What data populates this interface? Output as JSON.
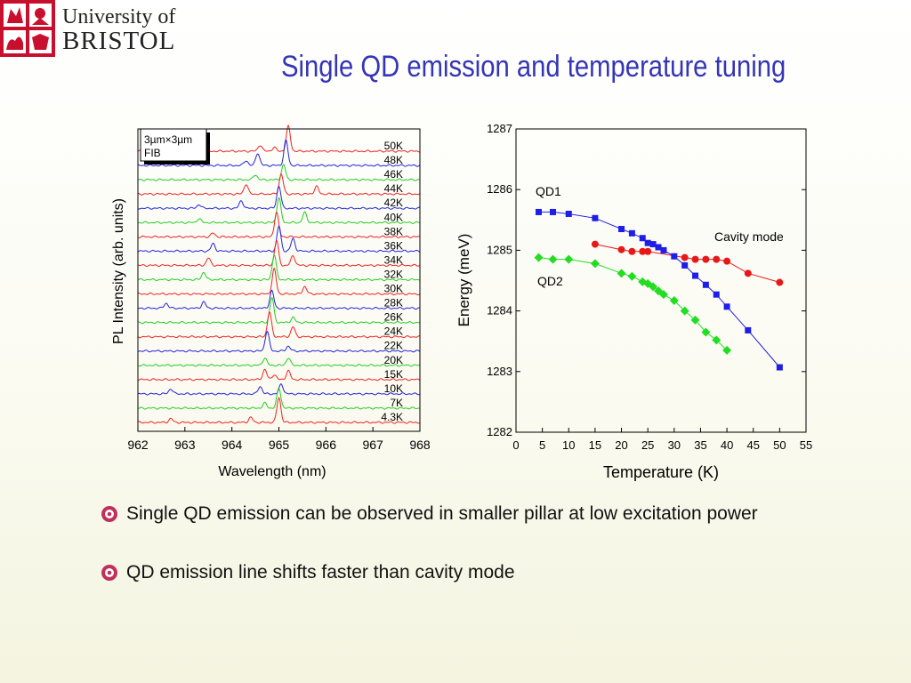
{
  "logo": {
    "line1": "University of",
    "line2": "BRISTOL"
  },
  "title": "Single QD emission and temperature tuning",
  "bullets": [
    {
      "text": "Single QD emission can be observed in smaller pillar at low excitation power"
    },
    {
      "text": "QD emission line shifts faster than cavity mode"
    }
  ],
  "colors": {
    "title": "#3535b8",
    "qd1": "#1e1ee6",
    "qd2": "#22dd22",
    "cavity": "#e81818",
    "trace_red": "#ee2222",
    "trace_green": "#22cc22",
    "trace_blue": "#2222dd",
    "bullet_icon": "#c0305a",
    "logo": "#c8102e"
  },
  "icons": {
    "bullet": "flower-bullet-icon",
    "crest": "bristol-crest-icon"
  },
  "chart_data": [
    {
      "type": "line",
      "xlabel": "Wavelength (nm)",
      "ylabel": "PL Intensity (arb. units)",
      "xticks": [
        "962",
        "963",
        "964",
        "965",
        "966",
        "967",
        "968"
      ],
      "xlim": [
        962,
        968
      ],
      "inset_label": [
        "3µm×3µm",
        "FIB"
      ],
      "series": [
        {
          "name": "50K",
          "color": "red",
          "peaks": [
            [
              965.2,
              1.0
            ],
            [
              964.6,
              0.25
            ],
            [
              964.9,
              0.15
            ]
          ]
        },
        {
          "name": "48K",
          "color": "blue",
          "peaks": [
            [
              965.15,
              1.0
            ],
            [
              964.55,
              0.5
            ],
            [
              964.3,
              0.2
            ]
          ]
        },
        {
          "name": "46K",
          "color": "green",
          "peaks": [
            [
              965.1,
              0.6
            ],
            [
              964.5,
              0.2
            ]
          ]
        },
        {
          "name": "44K",
          "color": "red",
          "peaks": [
            [
              965.05,
              0.8
            ],
            [
              964.3,
              0.4
            ],
            [
              965.8,
              0.3
            ]
          ]
        },
        {
          "name": "42K",
          "color": "blue",
          "peaks": [
            [
              965.0,
              0.9
            ],
            [
              964.2,
              0.3
            ],
            [
              963.3,
              0.15
            ]
          ]
        },
        {
          "name": "40K",
          "color": "green",
          "peaks": [
            [
              965.0,
              1.0
            ],
            [
              965.55,
              0.4
            ],
            [
              963.3,
              0.15
            ]
          ]
        },
        {
          "name": "38K",
          "color": "red",
          "peaks": [
            [
              964.95,
              1.0
            ],
            [
              963.6,
              0.15
            ]
          ]
        },
        {
          "name": "36K",
          "color": "blue",
          "peaks": [
            [
              965.0,
              1.0
            ],
            [
              965.3,
              0.5
            ],
            [
              963.6,
              0.3
            ]
          ]
        },
        {
          "name": "34K",
          "color": "red",
          "peaks": [
            [
              964.95,
              1.0
            ],
            [
              965.3,
              0.4
            ],
            [
              963.5,
              0.3
            ]
          ]
        },
        {
          "name": "32K",
          "color": "green",
          "peaks": [
            [
              964.9,
              1.0
            ],
            [
              963.4,
              0.3
            ]
          ]
        },
        {
          "name": "30K",
          "color": "red",
          "peaks": [
            [
              964.9,
              1.0
            ],
            [
              965.55,
              0.3
            ]
          ]
        },
        {
          "name": "28K",
          "color": "blue",
          "peaks": [
            [
              964.85,
              0.7
            ],
            [
              963.4,
              0.25
            ],
            [
              962.6,
              0.2
            ]
          ]
        },
        {
          "name": "26K",
          "color": "green",
          "peaks": [
            [
              964.85,
              1.0
            ],
            [
              965.3,
              0.2
            ]
          ]
        },
        {
          "name": "24K",
          "color": "red",
          "peaks": [
            [
              964.8,
              1.0
            ],
            [
              965.3,
              0.4
            ]
          ]
        },
        {
          "name": "22K",
          "color": "blue",
          "peaks": [
            [
              964.75,
              0.8
            ],
            [
              965.2,
              0.2
            ]
          ]
        },
        {
          "name": "20K",
          "color": "green",
          "peaks": [
            [
              964.7,
              0.3
            ],
            [
              965.2,
              0.3
            ]
          ]
        },
        {
          "name": "15K",
          "color": "red",
          "peaks": [
            [
              964.7,
              0.4
            ],
            [
              965.2,
              0.35
            ],
            [
              964.9,
              0.2
            ]
          ]
        },
        {
          "name": "10K",
          "color": "blue",
          "peaks": [
            [
              964.6,
              0.3
            ],
            [
              965.05,
              0.4
            ],
            [
              962.7,
              0.2
            ]
          ]
        },
        {
          "name": "7K",
          "color": "green",
          "peaks": [
            [
              965.0,
              0.8
            ],
            [
              964.7,
              0.2
            ]
          ]
        },
        {
          "name": "4.3K",
          "color": "red",
          "peaks": [
            [
              965.0,
              1.0
            ],
            [
              964.4,
              0.2
            ],
            [
              962.7,
              0.15
            ]
          ]
        }
      ]
    },
    {
      "type": "scatter",
      "xlabel": "Temperature (K)",
      "ylabel": "Energy (meV)",
      "xlim": [
        0,
        55
      ],
      "ylim": [
        1282,
        1287
      ],
      "xticks": [
        "0",
        "5",
        "10",
        "15",
        "20",
        "25",
        "30",
        "35",
        "40",
        "45",
        "50",
        "55"
      ],
      "yticks": [
        "1282",
        "1283",
        "1284",
        "1285",
        "1286",
        "1287"
      ],
      "series": [
        {
          "name": "QD1",
          "marker": "square",
          "x": [
            4.3,
            7,
            10,
            15,
            20,
            22,
            24,
            25,
            26,
            27,
            28,
            30,
            32,
            34,
            36,
            38,
            40,
            44,
            50
          ],
          "y": [
            1285.63,
            1285.63,
            1285.6,
            1285.53,
            1285.35,
            1285.28,
            1285.2,
            1285.12,
            1285.1,
            1285.05,
            1285.0,
            1284.9,
            1284.75,
            1284.58,
            1284.43,
            1284.27,
            1284.07,
            1283.68,
            1283.07
          ]
        },
        {
          "name": "QD2",
          "marker": "diamond",
          "x": [
            4.3,
            7,
            10,
            15,
            20,
            22,
            24,
            25,
            26,
            27,
            28,
            30,
            32,
            34,
            36,
            38,
            40
          ],
          "y": [
            1284.88,
            1284.85,
            1284.85,
            1284.78,
            1284.62,
            1284.57,
            1284.48,
            1284.45,
            1284.4,
            1284.33,
            1284.27,
            1284.17,
            1284.0,
            1283.85,
            1283.65,
            1283.52,
            1283.35
          ]
        },
        {
          "name": "Cavity mode",
          "marker": "circle",
          "x": [
            15,
            20,
            22,
            24,
            25,
            32,
            34,
            36,
            38,
            40,
            44,
            50
          ],
          "y": [
            1285.1,
            1285.01,
            1284.98,
            1284.98,
            1284.98,
            1284.88,
            1284.85,
            1284.85,
            1284.85,
            1284.82,
            1284.62,
            1284.47
          ]
        }
      ]
    }
  ]
}
